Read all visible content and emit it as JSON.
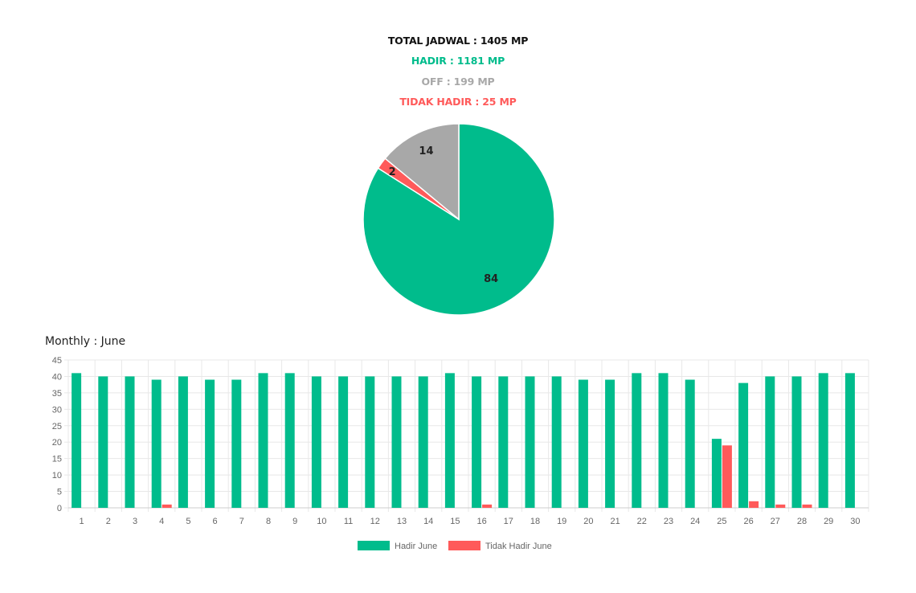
{
  "colors": {
    "hadir": "#00BC8C",
    "off": "#A8A8A8",
    "tidak_hadir": "#FF5A5A",
    "grid": "#e8e8e8",
    "axis_text": "#666666"
  },
  "summary": {
    "total": "TOTAL JADWAL : 1405 MP",
    "hadir": "HADIR : 1181 MP",
    "off": "OFF : 199 MP",
    "tidak_hadir": "TIDAK HADIR : 25 MP"
  },
  "monthly_title": "Monthly : June",
  "chart_data": [
    {
      "type": "pie",
      "labels": [
        "84",
        "2",
        "14"
      ],
      "values": [
        84,
        2,
        14
      ],
      "colors": [
        "#00BC8C",
        "#FF5A5A",
        "#A8A8A8"
      ]
    },
    {
      "type": "bar",
      "categories": [
        "1",
        "2",
        "3",
        "4",
        "5",
        "6",
        "7",
        "8",
        "9",
        "10",
        "11",
        "12",
        "13",
        "14",
        "15",
        "16",
        "17",
        "18",
        "19",
        "20",
        "21",
        "22",
        "23",
        "24",
        "25",
        "26",
        "27",
        "28",
        "29",
        "30"
      ],
      "series": [
        {
          "name": "Hadir June",
          "color": "#00BC8C",
          "values": [
            41,
            40,
            40,
            39,
            40,
            39,
            39,
            41,
            41,
            40,
            40,
            40,
            40,
            40,
            41,
            40,
            40,
            40,
            40,
            39,
            39,
            41,
            41,
            39,
            21,
            38,
            40,
            40,
            41,
            41
          ]
        },
        {
          "name": "Tidak Hadir June",
          "color": "#FF5A5A",
          "values": [
            0,
            0,
            0,
            1,
            0,
            0,
            0,
            0,
            0,
            0,
            0,
            0,
            0,
            0,
            0,
            1,
            0,
            0,
            0,
            0,
            0,
            0,
            0,
            0,
            19,
            2,
            1,
            1,
            0,
            0
          ]
        }
      ],
      "ylim": [
        0,
        45
      ],
      "yticks": [
        0,
        5,
        10,
        15,
        20,
        25,
        30,
        35,
        40,
        45
      ],
      "grid": true,
      "legend": "bottom"
    }
  ]
}
